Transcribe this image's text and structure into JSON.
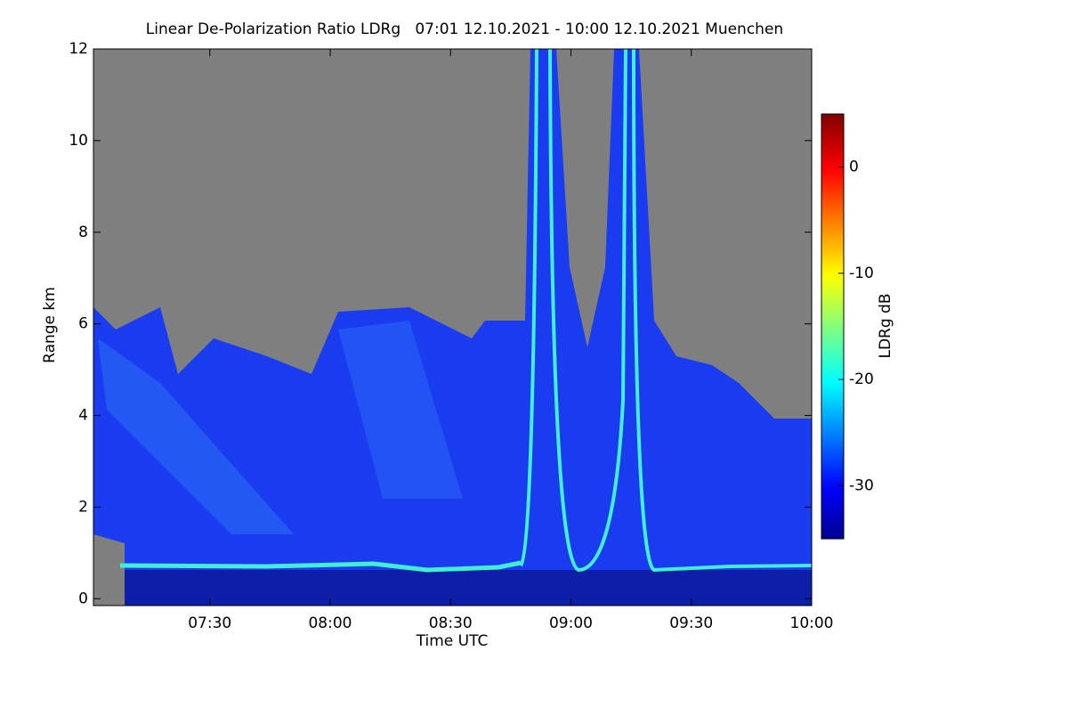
{
  "chart_data": {
    "type": "heatmap",
    "title": "Linear De-Polarization Ratio LDRg   07:01 12.10.2021 - 10:00 12.10.2021 Muenchen",
    "xlabel": "Time UTC",
    "ylabel": "Range km",
    "xlim": [
      "07:01",
      "10:00"
    ],
    "xticks": [
      "07:30",
      "08:00",
      "08:30",
      "09:00",
      "09:30",
      "10:00"
    ],
    "ylim": [
      -0.15,
      12
    ],
    "yticks": [
      0,
      2,
      4,
      6,
      8,
      10,
      12
    ],
    "colorbar": {
      "label": "LDRg dB",
      "clim": [
        -35,
        5
      ],
      "ticks": [
        0,
        -10,
        -20,
        -30
      ]
    }
  }
}
